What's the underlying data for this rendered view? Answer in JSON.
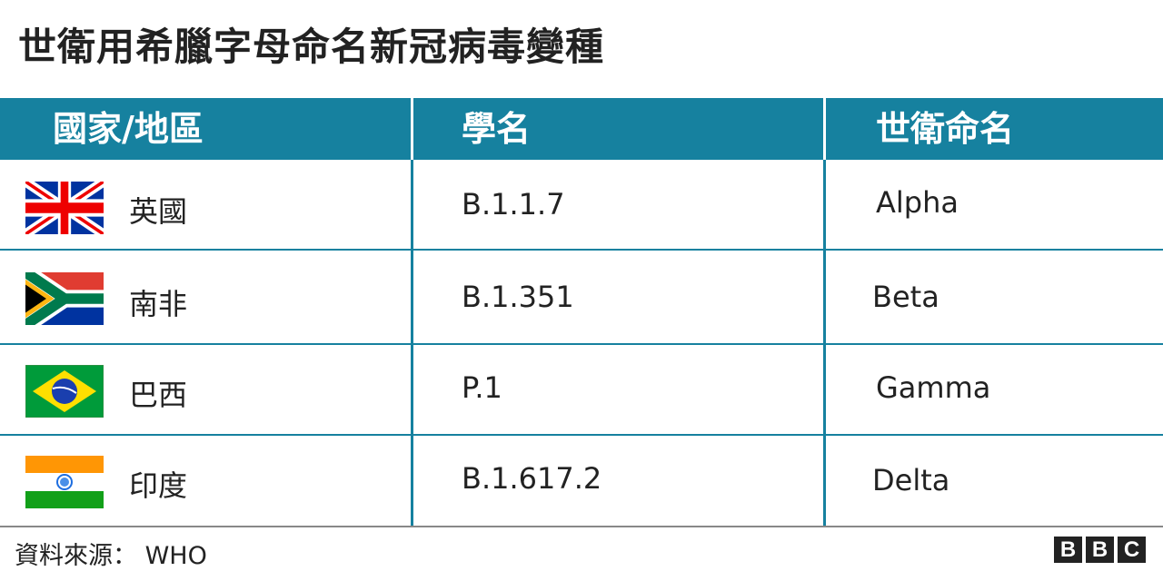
{
  "title": "世衛用希臘字母命名新冠病毒變種",
  "table": {
    "headers": [
      "國家/地區",
      "學名",
      "世衛命名"
    ],
    "rows": [
      {
        "flag": "uk-flag",
        "country": "英國",
        "scientific_name": "B.1.1.7",
        "who_name": "Alpha"
      },
      {
        "flag": "south-africa-flag",
        "country": "南非",
        "scientific_name": "B.1.351",
        "who_name": "Beta"
      },
      {
        "flag": "brazil-flag",
        "country": "巴西",
        "scientific_name": "P.1",
        "who_name": "Gamma"
      },
      {
        "flag": "india-flag",
        "country": "印度",
        "scientific_name": "B.1.617.2",
        "who_name": "Delta"
      }
    ]
  },
  "footer": {
    "source": "資料來源： WHO",
    "logo": "BBC"
  },
  "colors": {
    "header": "#16819f",
    "text": "#222222"
  }
}
